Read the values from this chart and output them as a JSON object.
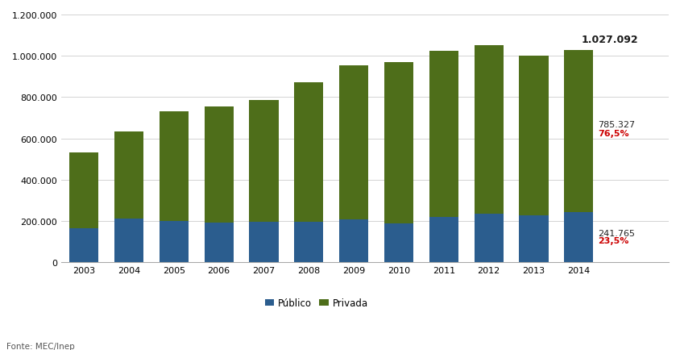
{
  "years": [
    2003,
    2004,
    2005,
    2006,
    2007,
    2008,
    2009,
    2010,
    2011,
    2012,
    2013,
    2014
  ],
  "publico": [
    166000,
    211000,
    200000,
    193000,
    195000,
    196000,
    207000,
    188000,
    218000,
    235000,
    229000,
    241765
  ],
  "privado": [
    364000,
    424000,
    531000,
    563000,
    589000,
    674000,
    748000,
    783000,
    805000,
    818000,
    771000,
    785327
  ],
  "total_label": "1.027.092",
  "privado_label": "785.327",
  "privado_pct": "76,5%",
  "publico_label": "241.765",
  "publico_pct": "23,5%",
  "color_publico": "#2B5D8E",
  "color_privado": "#4E6E1A",
  "ylim_max": 1200000,
  "ytick_step": 200000,
  "background_color": "#FFFFFF",
  "fonte_label": "Fonte: MEC/Inep",
  "legend_publico": "Público",
  "legend_privado": "Privada"
}
